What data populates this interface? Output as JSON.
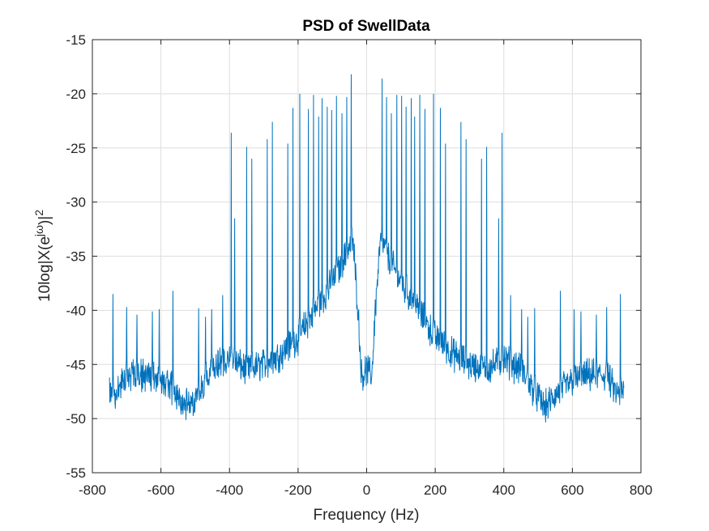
{
  "chart_data": {
    "type": "line",
    "title": "PSD of SwellData",
    "xlabel": "Frequency (Hz)",
    "ylabel_base": "10log|X(e",
    "ylabel_superscript": "jω",
    "ylabel_close": ")|",
    "ylabel_exponent": "2",
    "xlim": [
      -800,
      800
    ],
    "ylim": [
      -55,
      -15
    ],
    "xticks": [
      -800,
      -600,
      -400,
      -200,
      0,
      200,
      400,
      600,
      800
    ],
    "yticks": [
      -55,
      -50,
      -45,
      -40,
      -35,
      -30,
      -25,
      -20,
      -15
    ],
    "grid": true,
    "line_color": "#0072BD",
    "x_range": [
      -750,
      750
    ],
    "peaks": [
      {
        "x": -740,
        "y": -38.5
      },
      {
        "x": -700,
        "y": -39.7
      },
      {
        "x": -670,
        "y": -40.4
      },
      {
        "x": -625,
        "y": -40.1
      },
      {
        "x": -605,
        "y": -39.9
      },
      {
        "x": -565,
        "y": -38.2
      },
      {
        "x": -490,
        "y": -39.8
      },
      {
        "x": -470,
        "y": -40.6
      },
      {
        "x": -452,
        "y": -39.9
      },
      {
        "x": -420,
        "y": -38.6
      },
      {
        "x": -395,
        "y": -23.6
      },
      {
        "x": -385,
        "y": -31.5
      },
      {
        "x": -350,
        "y": -24.9
      },
      {
        "x": -335,
        "y": -26.0
      },
      {
        "x": -290,
        "y": -24.2
      },
      {
        "x": -275,
        "y": -22.6
      },
      {
        "x": -230,
        "y": -24.6
      },
      {
        "x": -215,
        "y": -21.3
      },
      {
        "x": -195,
        "y": -20.0
      },
      {
        "x": -170,
        "y": -21.4
      },
      {
        "x": -155,
        "y": -20.1
      },
      {
        "x": -140,
        "y": -22.1
      },
      {
        "x": -130,
        "y": -20.4
      },
      {
        "x": -115,
        "y": -21.2
      },
      {
        "x": -102,
        "y": -21.5
      },
      {
        "x": -88,
        "y": -20.2
      },
      {
        "x": -72,
        "y": -21.8
      },
      {
        "x": -58,
        "y": -20.3
      },
      {
        "x": -45,
        "y": -18.2
      },
      {
        "x": 45,
        "y": -18.6
      },
      {
        "x": 58,
        "y": -20.3
      },
      {
        "x": 72,
        "y": -21.8
      },
      {
        "x": 88,
        "y": -20.1
      },
      {
        "x": 102,
        "y": -20.2
      },
      {
        "x": 115,
        "y": -21.2
      },
      {
        "x": 130,
        "y": -20.4
      },
      {
        "x": 140,
        "y": -22.1
      },
      {
        "x": 155,
        "y": -20.1
      },
      {
        "x": 170,
        "y": -21.4
      },
      {
        "x": 195,
        "y": -20.0
      },
      {
        "x": 215,
        "y": -21.3
      },
      {
        "x": 230,
        "y": -24.6
      },
      {
        "x": 275,
        "y": -22.6
      },
      {
        "x": 290,
        "y": -24.2
      },
      {
        "x": 335,
        "y": -26.0
      },
      {
        "x": 350,
        "y": -24.9
      },
      {
        "x": 385,
        "y": -31.5
      },
      {
        "x": 395,
        "y": -23.6
      },
      {
        "x": 420,
        "y": -38.6
      },
      {
        "x": 452,
        "y": -39.9
      },
      {
        "x": 470,
        "y": -40.6
      },
      {
        "x": 490,
        "y": -39.8
      },
      {
        "x": 565,
        "y": -38.2
      },
      {
        "x": 605,
        "y": -39.9
      },
      {
        "x": 625,
        "y": -40.1
      },
      {
        "x": 670,
        "y": -40.4
      },
      {
        "x": 700,
        "y": -39.7
      },
      {
        "x": 740,
        "y": -38.5
      }
    ],
    "baseline_profile": [
      {
        "x": -750,
        "y": -47.5
      },
      {
        "x": -730,
        "y": -47.8
      },
      {
        "x": -700,
        "y": -46.0
      },
      {
        "x": -650,
        "y": -46.0
      },
      {
        "x": -600,
        "y": -46.5
      },
      {
        "x": -560,
        "y": -47.5
      },
      {
        "x": -520,
        "y": -49.0
      },
      {
        "x": -480,
        "y": -47.0
      },
      {
        "x": -450,
        "y": -45.5
      },
      {
        "x": -400,
        "y": -44.5
      },
      {
        "x": -350,
        "y": -45.5
      },
      {
        "x": -300,
        "y": -45.0
      },
      {
        "x": -250,
        "y": -44.0
      },
      {
        "x": -200,
        "y": -42.5
      },
      {
        "x": -150,
        "y": -40.0
      },
      {
        "x": -100,
        "y": -37.5
      },
      {
        "x": -70,
        "y": -35.5
      },
      {
        "x": -40,
        "y": -33.5
      },
      {
        "x": -25,
        "y": -40.0
      },
      {
        "x": -15,
        "y": -46.0
      },
      {
        "x": 0,
        "y": -45.5
      },
      {
        "x": 15,
        "y": -46.0
      },
      {
        "x": 25,
        "y": -40.0
      },
      {
        "x": 40,
        "y": -33.5
      },
      {
        "x": 70,
        "y": -35.5
      },
      {
        "x": 100,
        "y": -37.5
      },
      {
        "x": 150,
        "y": -40.0
      },
      {
        "x": 200,
        "y": -42.5
      },
      {
        "x": 250,
        "y": -44.0
      },
      {
        "x": 300,
        "y": -45.0
      },
      {
        "x": 350,
        "y": -45.5
      },
      {
        "x": 400,
        "y": -44.5
      },
      {
        "x": 450,
        "y": -45.5
      },
      {
        "x": 480,
        "y": -47.0
      },
      {
        "x": 520,
        "y": -49.0
      },
      {
        "x": 560,
        "y": -47.5
      },
      {
        "x": 600,
        "y": -46.5
      },
      {
        "x": 650,
        "y": -46.0
      },
      {
        "x": 700,
        "y": -46.0
      },
      {
        "x": 730,
        "y": -47.8
      },
      {
        "x": 750,
        "y": -47.5
      }
    ]
  }
}
